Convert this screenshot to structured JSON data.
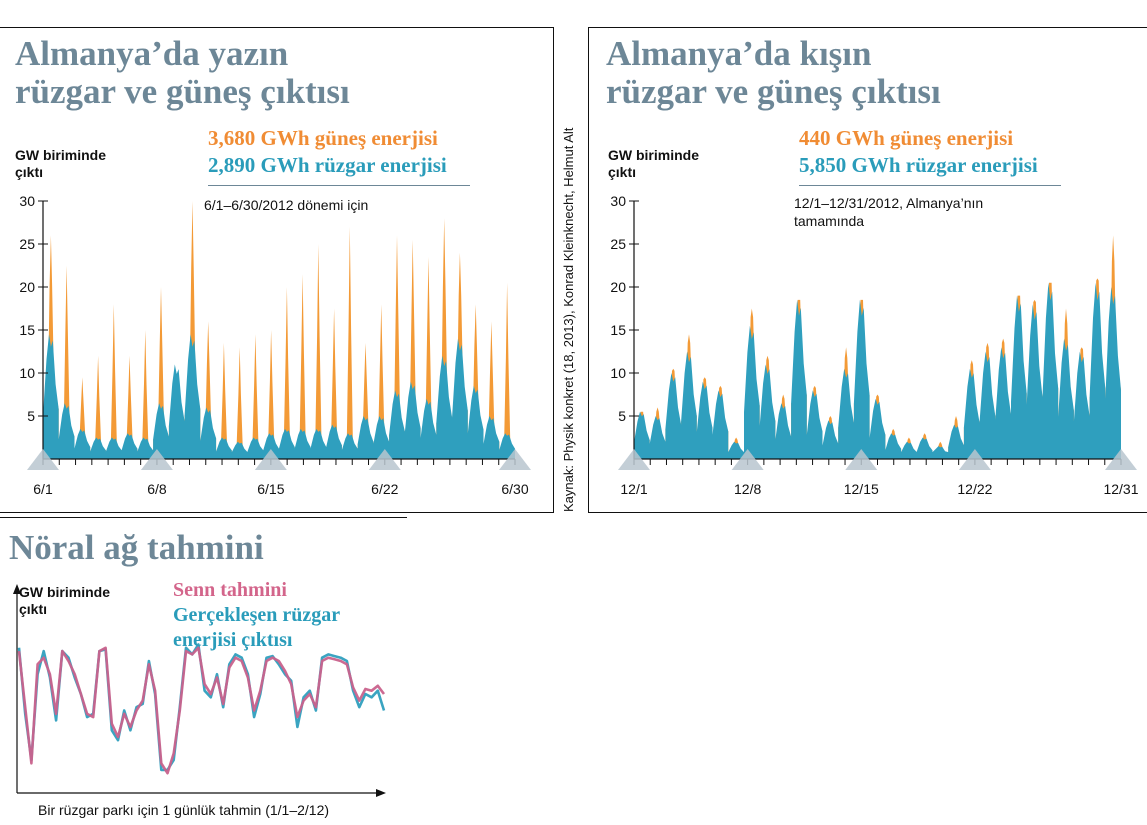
{
  "source_note": "Kaynak: Physik konkret (18, 2013), Konrad Kleinknecht, Helmut Alt",
  "colors": {
    "solar": "#f39a36",
    "wind": "#2f9fbe",
    "forecast": "#c9628c",
    "actual": "#2f9fbe",
    "title": "#6d8797"
  },
  "summer": {
    "title_line1": "Almanya’da yazın",
    "title_line2": "rüzgar ve güneş çıktısı",
    "ylabel_line1": "GW biriminde",
    "ylabel_line2": "çıktı",
    "legend_solar": "3,680 GWh güneş enerjisi",
    "legend_wind": "2,890 GWh rüzgar enerjisi",
    "note_line1": "6/1–6/30/2012 dönemi için",
    "note_line2": ""
  },
  "winter": {
    "title_line1": "Almanya’da kışın",
    "title_line2": "rüzgar ve güneş çıktısı",
    "ylabel_line1": "GW biriminde",
    "ylabel_line2": "çıktı",
    "legend_solar": "440 GWh güneş enerjisi",
    "legend_wind": "5,850 GWh rüzgar enerjisi",
    "note_line1": "12/1–12/31/2012, Almanya’nın",
    "note_line2": "tamamında"
  },
  "neural": {
    "title": "Nöral ağ tahmini",
    "ylabel_line1": "GW biriminde",
    "ylabel_line2": "çıktı",
    "legend_forecast": "Senn tahmini",
    "legend_actual_line1": "Gerçekleşen rüzgar",
    "legend_actual_line2": "enerjisi çıktısı",
    "xlabel": "Bir rüzgar parkı için 1 günlük tahmin (1/1–2/12)"
  },
  "chart_data": [
    {
      "type": "area",
      "title": "Almanya’da yazın rüzgar ve güneş çıktısı",
      "ylabel": "GW biriminde çıktı",
      "ylim": [
        0,
        30
      ],
      "yticks": [
        "5",
        "10",
        "15",
        "20",
        "25",
        "30"
      ],
      "ytick_values": [
        5,
        10,
        15,
        20,
        25,
        30
      ],
      "xlim": [
        1,
        30
      ],
      "xticks": [
        "6/1",
        "6/8",
        "6/15",
        "6/22",
        "6/30"
      ],
      "xtick_values": [
        1,
        8,
        15,
        22,
        30
      ],
      "x_unit": "day of June 2012",
      "series": [
        {
          "name": "güneş enerjisi",
          "daily_total_peak_gw": [
            26,
            22.5,
            9.5,
            12,
            18,
            12,
            15,
            20,
            9.5,
            30,
            16,
            13.5,
            13,
            14.5,
            15,
            20,
            21.5,
            25,
            17.5,
            27,
            13.5,
            18,
            26,
            25.5,
            23.5,
            28,
            24,
            18,
            16,
            20.5
          ]
        },
        {
          "name": "rüzgar enerjisi",
          "daily_peak_gw": [
            14.5,
            6.5,
            3.5,
            2.5,
            2.5,
            3,
            2.5,
            6.5,
            11,
            14.5,
            6,
            2.5,
            2,
            2.5,
            3,
            3.5,
            3.5,
            3.5,
            4,
            3,
            5,
            5,
            8,
            9,
            7,
            12,
            14,
            8.5,
            5,
            3
          ]
        }
      ]
    },
    {
      "type": "area",
      "title": "Almanya’da kışın rüzgar ve güneş çıktısı",
      "ylabel": "GW biriminde çıktı",
      "ylim": [
        0,
        30
      ],
      "yticks": [
        "5",
        "10",
        "15",
        "20",
        "25",
        "30"
      ],
      "ytick_values": [
        5,
        10,
        15,
        20,
        25,
        30
      ],
      "xlim": [
        1,
        31
      ],
      "xticks": [
        "12/1",
        "12/8",
        "12/15",
        "12/22",
        "12/31"
      ],
      "xtick_values": [
        1,
        8,
        15,
        22,
        31
      ],
      "x_unit": "day of December 2012",
      "series": [
        {
          "name": "güneş enerjisi",
          "daily_total_peak_gw": [
            5.5,
            6,
            10.5,
            14.5,
            9.5,
            8.5,
            2.5,
            17.5,
            12,
            7.5,
            18.5,
            8.5,
            5,
            13,
            18.5,
            7.5,
            3.5,
            2.5,
            3,
            2,
            5,
            11.5,
            13.5,
            14,
            19,
            18.5,
            20.5,
            17.5,
            13,
            21,
            26
          ]
        },
        {
          "name": "rüzgar enerjisi",
          "daily_peak_gw": [
            5.5,
            5,
            10,
            12.5,
            9,
            8,
            2,
            15.5,
            11,
            6.5,
            18.5,
            8,
            4.5,
            10.5,
            18.5,
            7,
            3,
            2,
            2.5,
            1.5,
            4,
            10.5,
            12.5,
            13,
            19,
            18,
            20.5,
            14,
            12.5,
            20.5,
            20
          ]
        }
      ]
    },
    {
      "type": "line",
      "title": "Nöral ağ tahmini",
      "xlabel": "Bir rüzgar parkı için 1 günlük tahmin (1/1–2/12)",
      "ylabel": "GW biriminde çıktı",
      "units": "relative (no tick values shown)",
      "ylim": [
        0,
        1
      ],
      "x": [
        1,
        2,
        3,
        4,
        5,
        6,
        7,
        8,
        9,
        10,
        11,
        12,
        13,
        14,
        15,
        16,
        17,
        18,
        19,
        20,
        21,
        22,
        23,
        24,
        25,
        26,
        27,
        28,
        29,
        30,
        31,
        32,
        33,
        34,
        35,
        36,
        37,
        38,
        39,
        40,
        41,
        42,
        43,
        44,
        45,
        46,
        47,
        48,
        49,
        50,
        51,
        52,
        53,
        54,
        55,
        56,
        57,
        58,
        59,
        60
      ],
      "series": [
        {
          "name": "Senn tahmini",
          "values": [
            0.86,
            0.52,
            0.18,
            0.78,
            0.82,
            0.72,
            0.48,
            0.86,
            0.8,
            0.72,
            0.6,
            0.48,
            0.46,
            0.86,
            0.88,
            0.42,
            0.34,
            0.48,
            0.4,
            0.5,
            0.56,
            0.78,
            0.62,
            0.18,
            0.12,
            0.24,
            0.5,
            0.86,
            0.84,
            0.88,
            0.66,
            0.6,
            0.7,
            0.54,
            0.76,
            0.82,
            0.8,
            0.7,
            0.5,
            0.62,
            0.8,
            0.82,
            0.8,
            0.74,
            0.66,
            0.46,
            0.56,
            0.6,
            0.52,
            0.8,
            0.82,
            0.81,
            0.8,
            0.78,
            0.64,
            0.56,
            0.63,
            0.62,
            0.65,
            0.6
          ]
        },
        {
          "name": "Gerçekleşen rüzgar enerjisi çıktısı",
          "values": [
            0.88,
            0.48,
            0.2,
            0.72,
            0.86,
            0.7,
            0.44,
            0.86,
            0.82,
            0.7,
            0.6,
            0.46,
            0.48,
            0.86,
            0.87,
            0.38,
            0.32,
            0.5,
            0.38,
            0.52,
            0.54,
            0.8,
            0.6,
            0.14,
            0.14,
            0.2,
            0.52,
            0.88,
            0.84,
            0.9,
            0.62,
            0.58,
            0.72,
            0.52,
            0.78,
            0.84,
            0.82,
            0.72,
            0.46,
            0.6,
            0.82,
            0.83,
            0.78,
            0.72,
            0.68,
            0.4,
            0.58,
            0.62,
            0.5,
            0.82,
            0.84,
            0.83,
            0.82,
            0.8,
            0.62,
            0.52,
            0.6,
            0.58,
            0.62,
            0.5
          ]
        }
      ]
    }
  ]
}
